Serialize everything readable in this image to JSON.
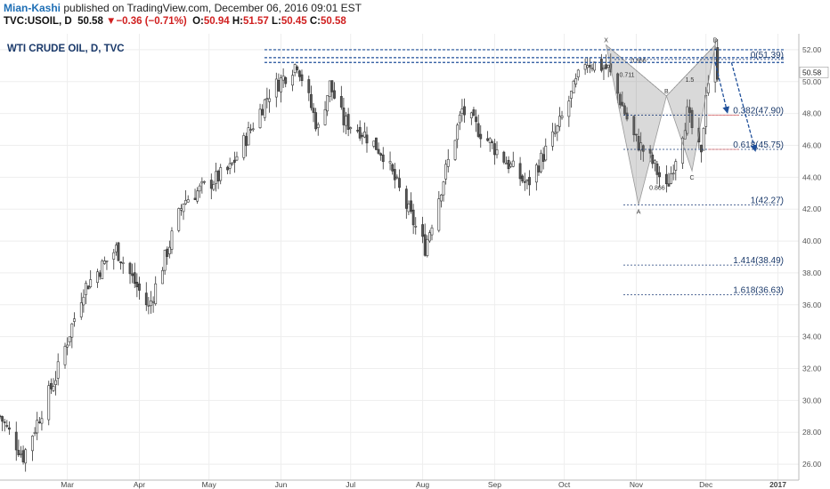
{
  "header": {
    "author": "Mian-Kashi",
    "published": "published on TradingView.com, December 06, 2016 09:01 EST",
    "symbol": "TVC:USOIL, D",
    "last": "50.58",
    "change": "−0.36 (−0.71%)",
    "open_label": "O:",
    "open": "50.94",
    "high_label": "H:",
    "high": "51.57",
    "low_label": "L:",
    "low": "50.45",
    "close_label": "C:",
    "close": "50.58"
  },
  "chart_data": {
    "type": "candlestick",
    "title": "WTI CRUDE OIL, D, TVC",
    "ylim": [
      25.0,
      53.0
    ],
    "y_ticks": [
      "26.00",
      "28.00",
      "30.00",
      "32.00",
      "34.00",
      "36.00",
      "38.00",
      "40.00",
      "42.00",
      "44.00",
      "46.00",
      "48.00",
      "50.00",
      "52.00"
    ],
    "last_price_label": "50.58",
    "x_ticks": [
      "Mar",
      "Apr",
      "May",
      "Jun",
      "Jul",
      "Aug",
      "Sep",
      "Oct",
      "Nov",
      "Dec",
      "2017"
    ],
    "x_start": "2016-02-01",
    "x_end": "2017-01-10",
    "tick_dates": [
      "2016-03-01",
      "2016-04-01",
      "2016-05-01",
      "2016-06-01",
      "2016-07-01",
      "2016-08-01",
      "2016-09-01",
      "2016-10-01",
      "2016-11-01",
      "2016-12-01",
      "2017-01-01"
    ],
    "grid": true,
    "anchors": [
      [
        "2016-02-01",
        29.0
      ],
      [
        "2016-02-11",
        26.5
      ],
      [
        "2016-02-25",
        31.5
      ],
      [
        "2016-03-08",
        37.0
      ],
      [
        "2016-03-22",
        39.5
      ],
      [
        "2016-04-05",
        35.8
      ],
      [
        "2016-04-20",
        42.5
      ],
      [
        "2016-05-10",
        44.5
      ],
      [
        "2016-05-27",
        49.3
      ],
      [
        "2016-06-08",
        51.2
      ],
      [
        "2016-06-17",
        47.0
      ],
      [
        "2016-06-22",
        49.8
      ],
      [
        "2016-06-28",
        47.5
      ],
      [
        "2016-07-05",
        47.0
      ],
      [
        "2016-07-15",
        45.5
      ],
      [
        "2016-07-27",
        41.5
      ],
      [
        "2016-08-02",
        39.6
      ],
      [
        "2016-08-18",
        48.2
      ],
      [
        "2016-08-25",
        47.0
      ],
      [
        "2016-09-06",
        45.0
      ],
      [
        "2016-09-15",
        43.5
      ],
      [
        "2016-09-28",
        47.0
      ],
      [
        "2016-10-10",
        51.3
      ],
      [
        "2016-10-20",
        50.8
      ],
      [
        "2016-10-31",
        46.5
      ],
      [
        "2016-11-08",
        44.9
      ],
      [
        "2016-11-14",
        43.2
      ],
      [
        "2016-11-23",
        48.0
      ],
      [
        "2016-11-29",
        45.2
      ],
      [
        "2016-12-01",
        49.5
      ],
      [
        "2016-12-05",
        51.7
      ],
      [
        "2016-12-06",
        50.6
      ]
    ],
    "pattern_points": [
      {
        "label": "X",
        "date": "2016-10-19",
        "price": 52.3
      },
      {
        "label": "A",
        "date": "2016-11-02",
        "price": 42.27
      },
      {
        "label": "B",
        "date": "2016-11-14",
        "price": 49.1
      },
      {
        "label": "C",
        "date": "2016-11-25",
        "price": 44.4
      },
      {
        "label": "D",
        "date": "2016-12-05",
        "price": 52.3
      }
    ],
    "pattern_labels": [
      {
        "text": "0.711",
        "date": "2016-10-28",
        "price": 50.3
      },
      {
        "text": "1.5",
        "date": "2016-11-24",
        "price": 50.0
      },
      {
        "text": "0.866",
        "date": "2016-11-10",
        "price": 43.2
      },
      {
        "text": "0.866",
        "date": "2016-11-02",
        "price": 51.2
      }
    ],
    "fib_levels": [
      {
        "label": "0(51.39)",
        "price": 51.39
      },
      {
        "label": "0.382(47.90)",
        "price": 47.9
      },
      {
        "label": "0.618(45.75)",
        "price": 45.75
      },
      {
        "label": "1(42.27)",
        "price": 42.27
      },
      {
        "label": "1.414(38.49)",
        "price": 38.49
      },
      {
        "label": "1.618(36.63)",
        "price": 36.63
      }
    ],
    "resistance_levels": [
      52.0,
      51.5,
      51.2
    ],
    "arrows": [
      {
        "from_date": "2016-12-05",
        "from_price": 51.2,
        "to_date": "2016-12-10",
        "to_price": 48.2
      },
      {
        "from_date": "2016-12-12",
        "from_price": 51.2,
        "to_date": "2016-12-22",
        "to_price": 45.8
      }
    ]
  }
}
